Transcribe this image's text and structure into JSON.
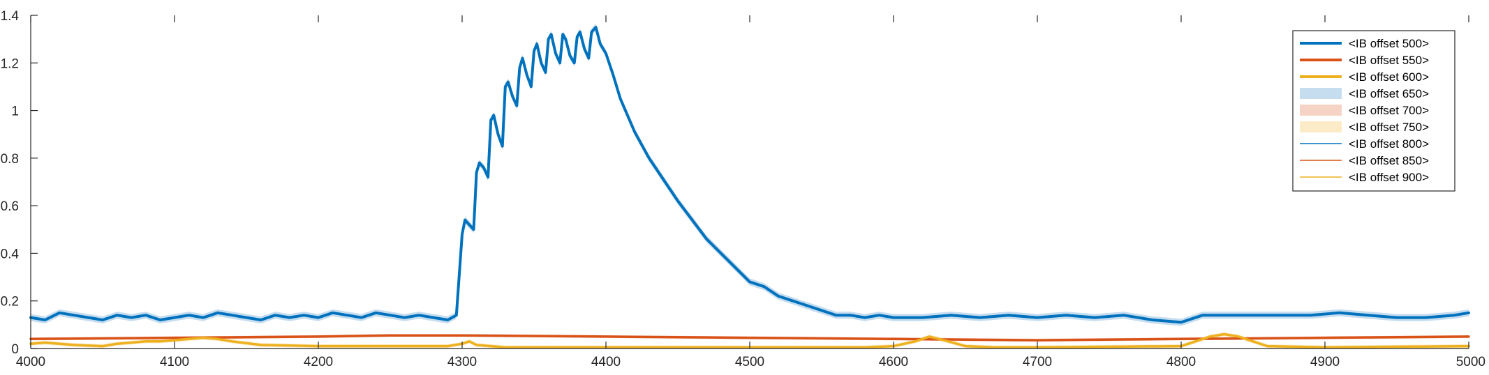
{
  "chart_data": {
    "type": "line",
    "title": "",
    "xlabel": "",
    "ylabel": "",
    "xlim": [
      4000,
      5000
    ],
    "ylim": [
      0,
      1.4
    ],
    "xticks": [
      4000,
      4100,
      4200,
      4300,
      4400,
      4500,
      4600,
      4700,
      4800,
      4900,
      5000
    ],
    "xtick_labels": [
      "4000",
      "4100",
      "4200",
      "4300",
      "4400",
      "4500",
      "4600",
      "4700",
      "4800",
      "4900",
      "5000"
    ],
    "yticks": [
      0,
      0.2,
      0.4,
      0.6,
      0.8,
      1.0,
      1.2,
      1.4
    ],
    "ytick_labels": [
      "0",
      "0.2",
      "0.4",
      "0.6",
      "0.8",
      "1",
      "1.2",
      "1.4"
    ],
    "grid": false,
    "legend": {
      "location": "top-right",
      "entries": [
        {
          "label": "<IB offset 500>",
          "kind": "thick-line",
          "color": "#0072BD"
        },
        {
          "label": "<IB offset 550>",
          "kind": "thick-line",
          "color": "#D95319"
        },
        {
          "label": "<IB offset 600>",
          "kind": "thick-line",
          "color": "#EDB120"
        },
        {
          "label": "<IB offset 650>",
          "kind": "band",
          "color": "#C6DDF0"
        },
        {
          "label": "<IB offset 700>",
          "kind": "band",
          "color": "#F6D4C5"
        },
        {
          "label": "<IB offset 750>",
          "kind": "band",
          "color": "#FBEBC7"
        },
        {
          "label": "<IB offset 800>",
          "kind": "thin-line",
          "color": "#0072BD"
        },
        {
          "label": "<IB offset 850>",
          "kind": "thin-line",
          "color": "#D95319"
        },
        {
          "label": "<IB offset 900>",
          "kind": "thin-line",
          "color": "#EDB120"
        }
      ]
    },
    "series": [
      {
        "color": "#0072BD",
        "band_color": "#C6DDF0",
        "band_halfwidth": 0.015,
        "x": [
          4000,
          4010,
          4020,
          4030,
          4040,
          4050,
          4060,
          4070,
          4080,
          4090,
          4100,
          4110,
          4120,
          4130,
          4140,
          4150,
          4160,
          4170,
          4180,
          4190,
          4200,
          4210,
          4220,
          4230,
          4240,
          4250,
          4260,
          4270,
          4280,
          4290,
          4296,
          4300,
          4302,
          4305,
          4308,
          4310,
          4312,
          4315,
          4318,
          4320,
          4322,
          4325,
          4328,
          4330,
          4332,
          4335,
          4338,
          4340,
          4342,
          4345,
          4348,
          4350,
          4352,
          4355,
          4358,
          4360,
          4362,
          4365,
          4368,
          4370,
          4372,
          4375,
          4378,
          4380,
          4382,
          4385,
          4388,
          4390,
          4393,
          4396,
          4400,
          4405,
          4410,
          4420,
          4430,
          4440,
          4450,
          4460,
          4470,
          4480,
          4490,
          4500,
          4510,
          4520,
          4530,
          4540,
          4550,
          4560,
          4570,
          4580,
          4590,
          4600,
          4620,
          4640,
          4660,
          4680,
          4700,
          4720,
          4740,
          4760,
          4780,
          4800,
          4815,
          4830,
          4850,
          4870,
          4890,
          4910,
          4930,
          4950,
          4970,
          4990,
          5000
        ],
        "y": [
          0.13,
          0.12,
          0.15,
          0.14,
          0.13,
          0.12,
          0.14,
          0.13,
          0.14,
          0.12,
          0.13,
          0.14,
          0.13,
          0.15,
          0.14,
          0.13,
          0.12,
          0.14,
          0.13,
          0.14,
          0.13,
          0.15,
          0.14,
          0.13,
          0.15,
          0.14,
          0.13,
          0.14,
          0.13,
          0.12,
          0.14,
          0.48,
          0.54,
          0.52,
          0.5,
          0.74,
          0.78,
          0.76,
          0.72,
          0.96,
          0.98,
          0.9,
          0.85,
          1.1,
          1.12,
          1.06,
          1.02,
          1.18,
          1.22,
          1.15,
          1.1,
          1.25,
          1.28,
          1.2,
          1.16,
          1.3,
          1.32,
          1.24,
          1.2,
          1.32,
          1.3,
          1.23,
          1.2,
          1.31,
          1.33,
          1.26,
          1.22,
          1.33,
          1.35,
          1.28,
          1.24,
          1.15,
          1.05,
          0.91,
          0.8,
          0.71,
          0.62,
          0.54,
          0.46,
          0.4,
          0.34,
          0.28,
          0.26,
          0.22,
          0.2,
          0.18,
          0.16,
          0.14,
          0.14,
          0.13,
          0.14,
          0.13,
          0.13,
          0.14,
          0.13,
          0.14,
          0.13,
          0.14,
          0.13,
          0.14,
          0.12,
          0.11,
          0.14,
          0.14,
          0.14,
          0.14,
          0.14,
          0.15,
          0.14,
          0.13,
          0.13,
          0.14,
          0.15
        ]
      },
      {
        "color": "#D95319",
        "band_color": "#F6D4C5",
        "band_halfwidth": 0.006,
        "x": [
          4000,
          4100,
          4200,
          4250,
          4300,
          4400,
          4500,
          4600,
          4700,
          4800,
          4900,
          5000
        ],
        "y": [
          0.04,
          0.045,
          0.05,
          0.055,
          0.055,
          0.05,
          0.045,
          0.04,
          0.035,
          0.04,
          0.045,
          0.05
        ]
      },
      {
        "color": "#EDB120",
        "band_color": "#FBEBC7",
        "band_halfwidth": 0.008,
        "x": [
          4000,
          4010,
          4020,
          4030,
          4050,
          4060,
          4080,
          4090,
          4100,
          4110,
          4120,
          4130,
          4140,
          4160,
          4200,
          4250,
          4290,
          4300,
          4305,
          4310,
          4320,
          4330,
          4350,
          4400,
          4500,
          4580,
          4600,
          4615,
          4625,
          4635,
          4650,
          4670,
          4700,
          4800,
          4810,
          4820,
          4830,
          4840,
          4850,
          4860,
          4900,
          5000
        ],
        "y": [
          0.02,
          0.025,
          0.02,
          0.015,
          0.01,
          0.02,
          0.03,
          0.03,
          0.035,
          0.04,
          0.045,
          0.04,
          0.03,
          0.015,
          0.01,
          0.01,
          0.01,
          0.02,
          0.03,
          0.015,
          0.01,
          0.005,
          0.005,
          0.005,
          0.005,
          0.005,
          0.01,
          0.03,
          0.05,
          0.035,
          0.01,
          0.005,
          0.005,
          0.01,
          0.03,
          0.05,
          0.06,
          0.05,
          0.03,
          0.01,
          0.005,
          0.01
        ]
      }
    ]
  }
}
